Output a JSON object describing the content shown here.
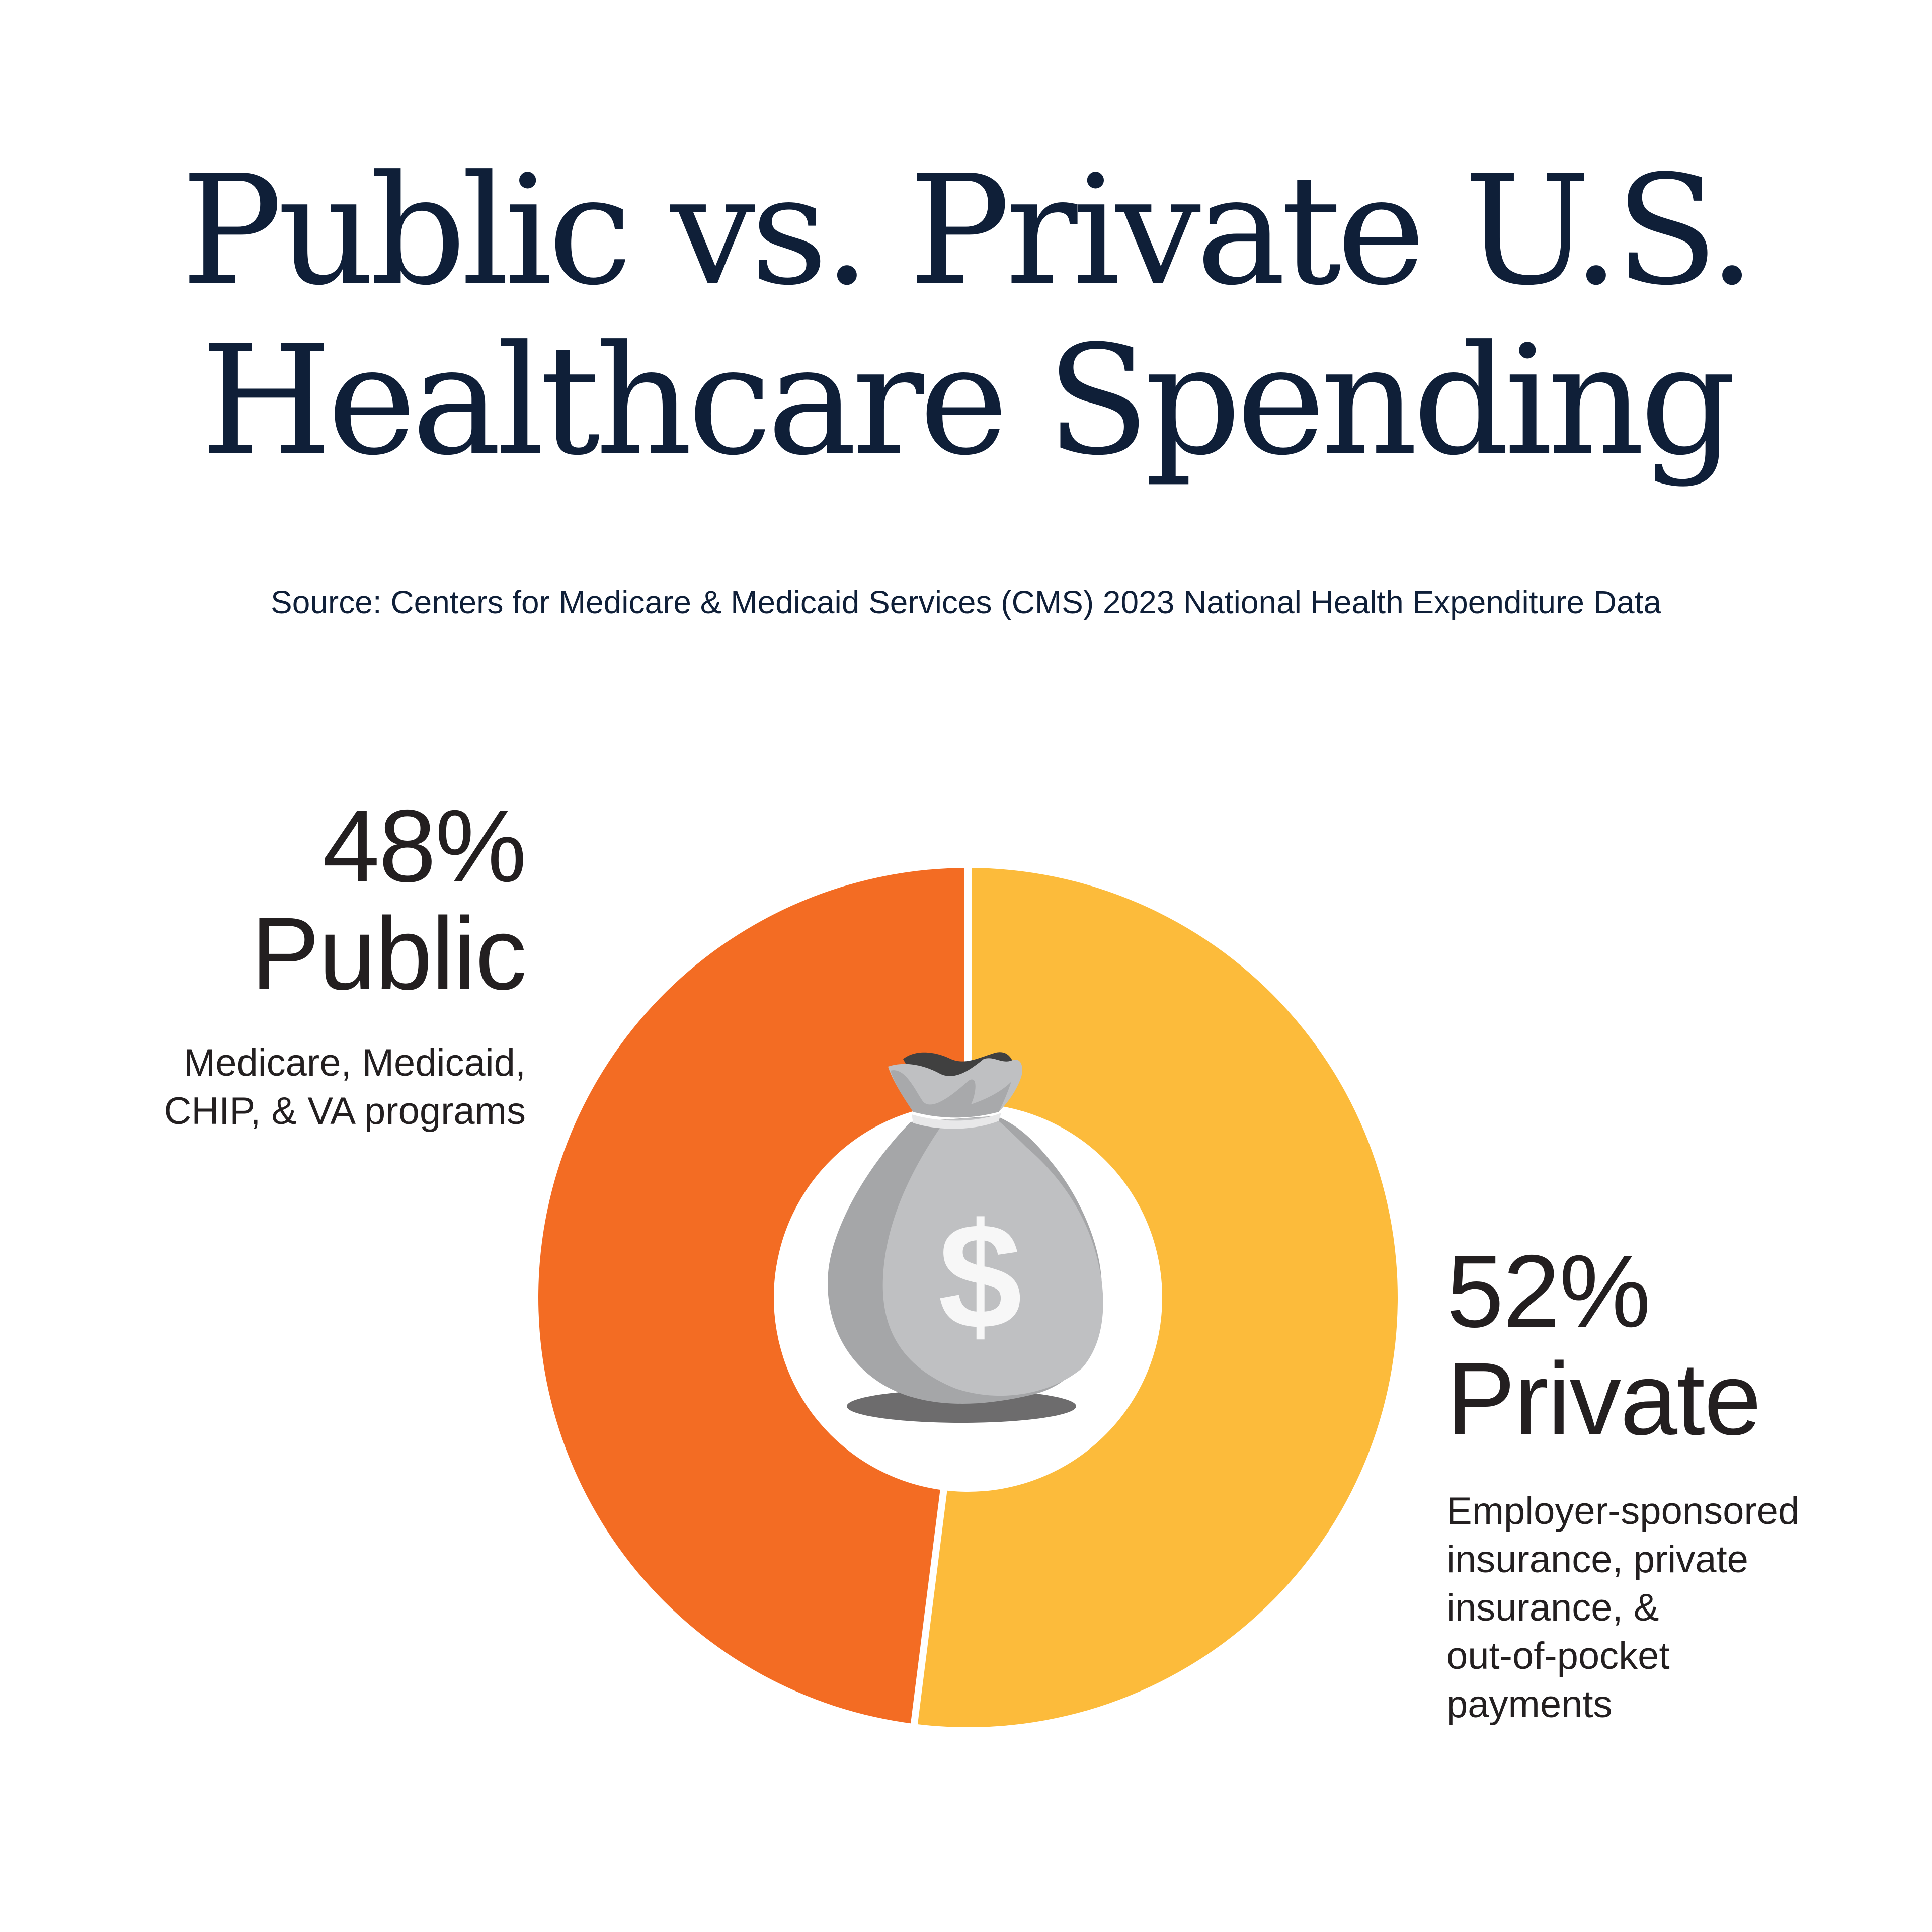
{
  "title": {
    "line1": "Public vs. Private U.S.",
    "line2": "Healthcare Spending"
  },
  "source": "Source: Centers for Medicare & Medicaid Services (CMS) 2023 National Health Expenditure Data",
  "segments": {
    "public": {
      "percent_label": "48%",
      "category": "Public",
      "description": "Medicare, Medicaid,\nCHIP, & VA programs",
      "color": "#f36c23"
    },
    "private": {
      "percent_label": "52%",
      "category": "Private",
      "description": "Employer-sponsored\ninsurance, private\ninsurance, &\nout-of-pocket\npayments",
      "color": "#fcbb3b"
    }
  },
  "center_icon": "money-bag-icon",
  "colors": {
    "title": "#0f1f38",
    "label_text": "#231f20",
    "background": "#ffffff",
    "bag_light": "#bfc0c2",
    "bag_shade": "#a5a6a8",
    "bag_shadow": "#6d6c6d",
    "bag_dark": "#404040",
    "dollar": "#f7f7f7"
  },
  "chart_data": {
    "type": "pie",
    "title": "Public vs. Private U.S. Healthcare Spending",
    "subtitle": "Source: Centers for Medicare & Medicaid Services (CMS) 2023 National Health Expenditure Data",
    "categories": [
      "Private",
      "Public"
    ],
    "values": [
      52,
      48
    ],
    "unit": "%",
    "donut": true,
    "annotations": [
      {
        "category": "Public",
        "label": "48% Public",
        "note": "Medicare, Medicaid, CHIP, & VA programs",
        "position": "upper-left"
      },
      {
        "category": "Private",
        "label": "52% Private",
        "note": "Employer-sponsored insurance, private insurance, & out-of-pocket payments",
        "position": "lower-right"
      }
    ],
    "colors": [
      "#fcbb3b",
      "#f36c23"
    ],
    "start_angle": "12 o'clock, clockwise",
    "legend": "none (direct labels)"
  }
}
